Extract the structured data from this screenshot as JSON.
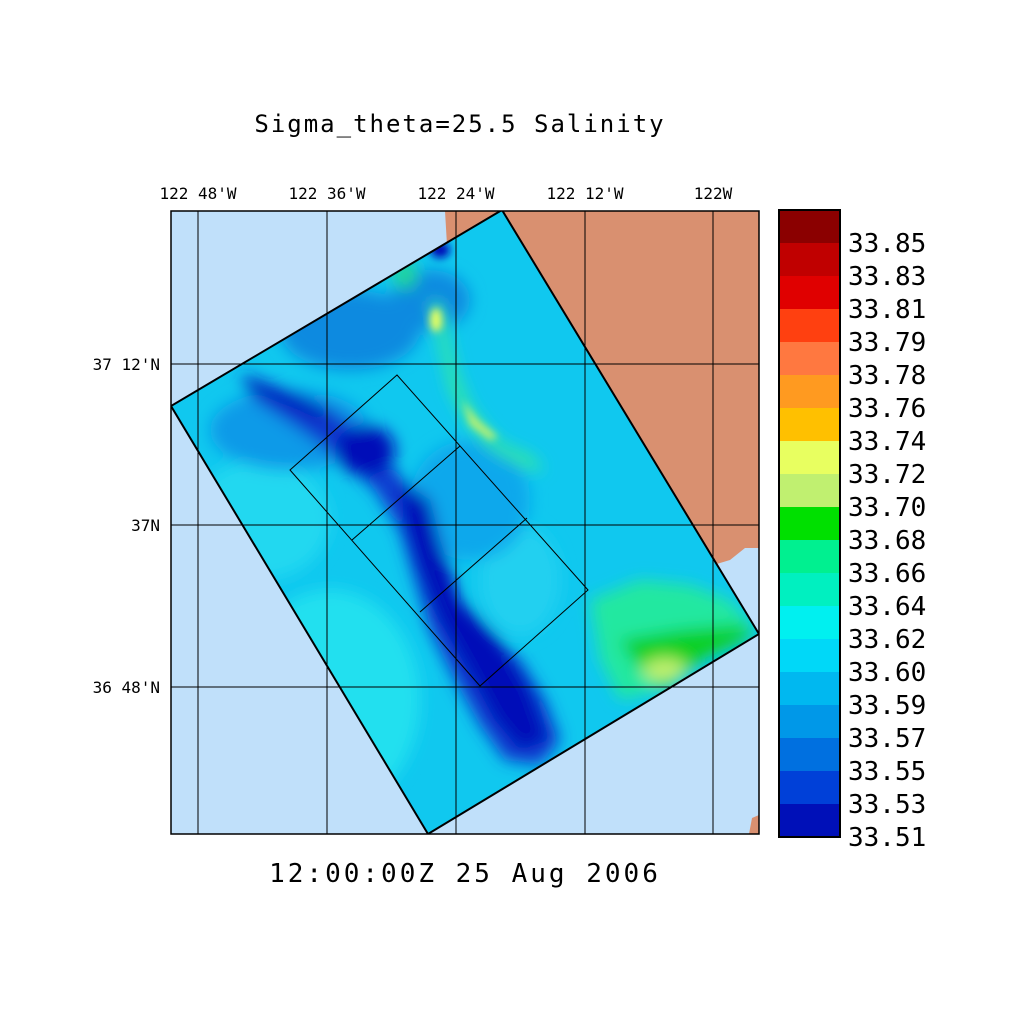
{
  "title": "Sigma_theta=25.5 Salinity",
  "timestamp": "12:00:00Z  25 Aug 2006",
  "lon_ticks": [
    "122 48'W",
    "122 36'W",
    "122 24'W",
    "122 12'W",
    "122W"
  ],
  "lat_ticks": [
    "37 12'N",
    "37N",
    "36 48'N"
  ],
  "colorbar": {
    "labels": [
      "33.85",
      "33.83",
      "33.81",
      "33.79",
      "33.78",
      "33.76",
      "33.74",
      "33.72",
      "33.70",
      "33.68",
      "33.66",
      "33.64",
      "33.62",
      "33.60",
      "33.59",
      "33.57",
      "33.55",
      "33.53",
      "33.51"
    ],
    "colors": [
      "#8b0000",
      "#c00000",
      "#e00000",
      "#ff4010",
      "#ff7840",
      "#ff9a20",
      "#ffc000",
      "#e8ff60",
      "#c0f070",
      "#00e000",
      "#00f090",
      "#00f0c0",
      "#00f0f0",
      "#00d8f8",
      "#00b8f0",
      "#0098e8",
      "#0070e0",
      "#0040d8",
      "#0010b8"
    ]
  },
  "map": {
    "ocean_color": "#c0e0fa",
    "land_color": "#d99070",
    "domain_fill": "#10c8ef"
  }
}
